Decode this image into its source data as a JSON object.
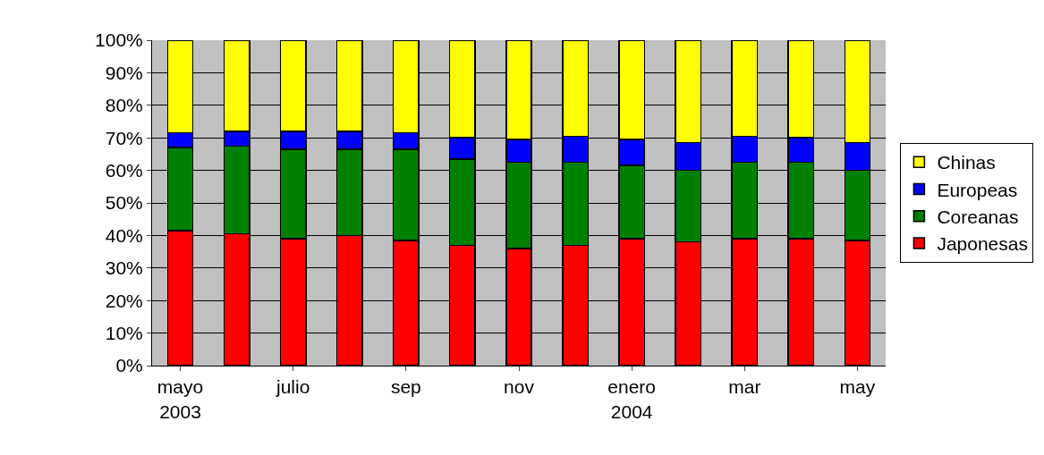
{
  "chart_data": {
    "type": "bar",
    "stacked": true,
    "categories": [
      "mayo\n2003",
      null,
      "julio",
      null,
      "sep",
      null,
      "nov",
      null,
      "enero\n2004",
      null,
      "mar",
      null,
      "may"
    ],
    "series": [
      {
        "name": "Japonesas",
        "color": "#ff0000",
        "values": [
          41.5,
          40.5,
          39,
          40,
          38.5,
          37,
          36,
          37,
          39,
          38,
          39,
          39,
          38.5
        ]
      },
      {
        "name": "Coreanas",
        "color": "#008000",
        "values": [
          25.5,
          27,
          27.5,
          26.5,
          28,
          26.5,
          26.5,
          25.5,
          22.5,
          22,
          23.5,
          23.5,
          21.5
        ]
      },
      {
        "name": "Europeas",
        "color": "#0000ff",
        "values": [
          4.5,
          4.5,
          5.5,
          5.5,
          5,
          6.5,
          7,
          8,
          8,
          8.5,
          8,
          7.5,
          8.5
        ]
      },
      {
        "name": "Chinas",
        "color": "#ffff00",
        "values": [
          28.5,
          28,
          28,
          28,
          28.5,
          30,
          30.5,
          29.5,
          30.5,
          31.5,
          29.5,
          30,
          31.5
        ]
      }
    ],
    "ylim": [
      0,
      100
    ],
    "yticks": [
      {
        "value": 0,
        "label": "0%"
      },
      {
        "value": 10,
        "label": "10%"
      },
      {
        "value": 20,
        "label": "20%"
      },
      {
        "value": 30,
        "label": "30%"
      },
      {
        "value": 40,
        "label": "40%"
      },
      {
        "value": 50,
        "label": "50%"
      },
      {
        "value": 60,
        "label": "60%"
      },
      {
        "value": 70,
        "label": "70%"
      },
      {
        "value": 80,
        "label": "80%"
      },
      {
        "value": 90,
        "label": "90%"
      },
      {
        "value": 100,
        "label": "100%"
      }
    ],
    "grid": "y",
    "legend": "right"
  }
}
